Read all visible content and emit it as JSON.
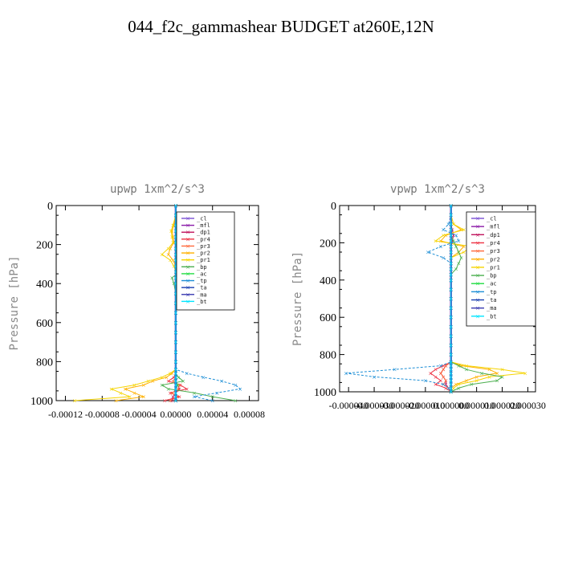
{
  "figure_title": "044_f2c_gammashear  BUDGET at260E,12N",
  "legend_names": [
    "_cl",
    "_mfl",
    "_dp1",
    "_pr4",
    "_pr3",
    "_pr2",
    "_pr1",
    "_bp",
    "_ac",
    "_tp",
    "_ta",
    "_ma",
    "_bt"
  ],
  "colors": {
    "_cl": "#7b4fd4",
    "_mfl": "#8b1aa8",
    "_dp1": "#c0145c",
    "_pr4": "#ee3344",
    "_pr3": "#ff6a3d",
    "_pr2": "#ffb000",
    "_pr1": "#f5d400",
    "_bp": "#4caf50",
    "_ac": "#22dd44",
    "_tp": "#1e8fd6",
    "_ta": "#1a3fb0",
    "_ma": "#3a3ab0",
    "_bt": "#00e5ff"
  },
  "chart_data": [
    {
      "type": "line",
      "title": "upwp  1xm^2/s^3",
      "xlabel": "",
      "ylabel": "Pressure [hPa]",
      "xlim": [
        -0.00013,
        9e-05
      ],
      "ylim": [
        1000,
        0
      ],
      "grid": false,
      "legend_position": "top-right",
      "yticks": [
        "0",
        "200",
        "400",
        "600",
        "800",
        "1000"
      ],
      "yticks_values": [
        0,
        200,
        400,
        600,
        800,
        1000
      ],
      "xticks": [
        "-0.00012",
        "-0.00008",
        "-0.00004",
        "0.00000",
        "0.00004",
        "0.00008"
      ],
      "xticks_values": [
        -0.00012,
        -8e-05,
        -4e-05,
        0.0,
        4e-05,
        8e-05
      ],
      "pressure": [
        0,
        50,
        100,
        130,
        160,
        190,
        220,
        250,
        280,
        310,
        340,
        370,
        400,
        450,
        500,
        550,
        600,
        650,
        700,
        750,
        800,
        840,
        860,
        880,
        900,
        920,
        940,
        960,
        980,
        1000
      ],
      "series": [
        {
          "name": "_cl",
          "values": [
            0,
            0,
            0,
            0,
            0,
            0,
            0,
            0,
            0,
            0,
            0,
            0,
            0,
            0,
            0,
            0,
            0,
            0,
            0,
            0,
            0,
            0,
            0,
            0,
            0,
            0,
            0,
            0,
            0,
            0
          ]
        },
        {
          "name": "_mfl",
          "values": [
            0,
            0,
            0,
            0,
            0,
            0,
            0,
            0,
            0,
            0,
            0,
            0,
            0,
            0,
            0,
            0,
            0,
            0,
            0,
            0,
            0,
            0,
            0,
            0,
            0,
            0,
            0,
            0,
            0,
            0
          ]
        },
        {
          "name": "_dp1",
          "values": [
            0,
            0,
            0,
            0,
            0,
            1e-06,
            0,
            0,
            0,
            0,
            0,
            0,
            0,
            0,
            0,
            0,
            0,
            0,
            0,
            0,
            0,
            0,
            0,
            0,
            0,
            2e-06,
            4e-06,
            0,
            -3e-06,
            -4e-06
          ]
        },
        {
          "name": "_pr4",
          "values": [
            0,
            0,
            0,
            0,
            0,
            0,
            0,
            0,
            0,
            0,
            0,
            0,
            0,
            0,
            0,
            0,
            0,
            0,
            0,
            0,
            0,
            0,
            0,
            -2e-06,
            -8e-06,
            5e-06,
            1.2e-05,
            -6e-06,
            4e-06,
            -1.2e-05
          ]
        },
        {
          "name": "_pr3",
          "values": [
            0,
            0,
            0,
            0,
            0,
            0,
            0,
            0,
            0,
            0,
            0,
            0,
            0,
            0,
            0,
            0,
            0,
            0,
            0,
            0,
            0,
            0,
            0,
            0,
            -3e-06,
            4e-06,
            3e-06,
            -4e-06,
            2e-06,
            -6e-06
          ]
        },
        {
          "name": "_pr2",
          "values": [
            0,
            0,
            -2e-06,
            -4e-06,
            -3e-06,
            -2e-06,
            -6e-06,
            -8e-06,
            -3e-06,
            0,
            0,
            0,
            0,
            0,
            0,
            0,
            0,
            0,
            0,
            0,
            0,
            0,
            -4e-06,
            -1e-05,
            -2.5e-05,
            -3.5e-05,
            -5.5e-05,
            -4.5e-05,
            -3.5e-05,
            -6.5e-05
          ]
        },
        {
          "name": "_pr1",
          "values": [
            0,
            0,
            -3e-06,
            -5e-06,
            -4e-06,
            -3e-06,
            -8e-06,
            -1.5e-05,
            -6e-06,
            -2e-06,
            0,
            0,
            0,
            0,
            0,
            0,
            0,
            0,
            0,
            0,
            0,
            0,
            -6e-06,
            -1.5e-05,
            -3e-05,
            -4.5e-05,
            -7e-05,
            -6e-05,
            -5e-05,
            -0.00011
          ]
        },
        {
          "name": "_bp",
          "values": [
            0,
            0,
            0,
            0,
            1e-06,
            2e-06,
            4e-06,
            8e-06,
            1.2e-05,
            6e-06,
            4e-06,
            -4e-06,
            -2e-06,
            0,
            0,
            0,
            0,
            0,
            0,
            0,
            0,
            0,
            0,
            3e-06,
            8e-06,
            -1.5e-05,
            -8e-06,
            2e-05,
            4e-05,
            6.5e-05
          ]
        },
        {
          "name": "_ac",
          "values": [
            0,
            0,
            0,
            0,
            0,
            0,
            0,
            0,
            0,
            0,
            0,
            0,
            0,
            0,
            0,
            0,
            0,
            0,
            0,
            0,
            0,
            0,
            0,
            0,
            0,
            2e-06,
            0,
            0,
            0,
            0
          ]
        },
        {
          "name": "_tp",
          "values": [
            0,
            0,
            1e-06,
            3e-06,
            4e-06,
            5e-06,
            9e-06,
            1.4e-05,
            1e-05,
            5e-06,
            2e-06,
            0,
            0,
            0,
            0,
            0,
            0,
            0,
            0,
            0,
            0,
            0,
            1.2e-05,
            3e-05,
            5e-05,
            6.5e-05,
            7e-05,
            4.5e-05,
            2e-05,
            4e-05
          ]
        },
        {
          "name": "_ta",
          "values": [
            0,
            0,
            0,
            0,
            0,
            0,
            0,
            0,
            0,
            0,
            0,
            0,
            0,
            0,
            0,
            0,
            0,
            0,
            0,
            0,
            0,
            0,
            0,
            0,
            0,
            0,
            0,
            0,
            0,
            0
          ]
        },
        {
          "name": "_ma",
          "values": [
            0,
            0,
            0,
            0,
            0,
            0,
            0,
            0,
            0,
            0,
            0,
            0,
            0,
            0,
            0,
            0,
            0,
            0,
            0,
            0,
            0,
            0,
            0,
            0,
            0,
            0,
            0,
            0,
            0,
            0
          ]
        },
        {
          "name": "_bt",
          "values": [
            0,
            0,
            0,
            0,
            0,
            0,
            0,
            0,
            0,
            0,
            0,
            0,
            0,
            0,
            0,
            0,
            0,
            0,
            0,
            0,
            0,
            0,
            0,
            0,
            0,
            0,
            0,
            0,
            0,
            0
          ]
        }
      ]
    },
    {
      "type": "line",
      "title": "vpwp  1xm^2/s^3",
      "xlabel": "",
      "ylabel": "Pressure [hPa]",
      "xlim": [
        -4.35e-05,
        3.3e-05
      ],
      "ylim": [
        1000,
        0
      ],
      "grid": false,
      "legend_position": "top-right",
      "yticks": [
        "0",
        "200",
        "400",
        "600",
        "800",
        "1000"
      ],
      "yticks_values": [
        0,
        200,
        400,
        600,
        800,
        1000
      ],
      "xticks": [
        "-0.000040",
        "-0.000030",
        "-0.000020",
        "-0.000010",
        "0.000000",
        "0.000010",
        "0.000020",
        "0.000030"
      ],
      "xticks_values": [
        -4e-05,
        -3e-05,
        -2e-05,
        -1e-05,
        0.0,
        1e-05,
        2e-05,
        3e-05
      ],
      "pressure": [
        0,
        50,
        100,
        130,
        160,
        190,
        220,
        250,
        280,
        310,
        340,
        370,
        400,
        450,
        500,
        550,
        600,
        650,
        700,
        750,
        800,
        840,
        860,
        880,
        900,
        920,
        940,
        960,
        980,
        1000
      ],
      "series": [
        {
          "name": "_cl",
          "values": [
            0,
            0,
            0,
            0,
            0,
            0,
            0,
            0,
            0,
            0,
            0,
            0,
            0,
            0,
            0,
            0,
            0,
            0,
            0,
            0,
            0,
            0,
            0,
            0,
            0,
            0,
            0,
            0,
            0,
            0
          ]
        },
        {
          "name": "_mfl",
          "values": [
            0,
            0,
            0,
            0,
            0,
            0,
            0,
            0,
            0,
            0,
            0,
            0,
            0,
            0,
            0,
            0,
            0,
            0,
            0,
            0,
            0,
            0,
            0,
            0,
            0,
            0,
            0,
            0,
            0,
            0
          ]
        },
        {
          "name": "_dp1",
          "values": [
            0,
            0,
            0,
            5e-07,
            1e-06,
            5e-07,
            0,
            0,
            0,
            0,
            0,
            0,
            0,
            0,
            0,
            0,
            0,
            0,
            0,
            0,
            0,
            0,
            -2e-06,
            -3e-06,
            -4e-06,
            -3e-06,
            -2e-06,
            -2e-06,
            -1e-06,
            0
          ]
        },
        {
          "name": "_pr4",
          "values": [
            0,
            0,
            0,
            0,
            0,
            0,
            0,
            0,
            0,
            0,
            0,
            0,
            0,
            0,
            0,
            0,
            0,
            0,
            0,
            0,
            0,
            0,
            -3e-06,
            -6e-06,
            -8e-06,
            -6e-06,
            -4e-06,
            -6e-06,
            -2e-06,
            0
          ]
        },
        {
          "name": "_pr3",
          "values": [
            0,
            0,
            0,
            0,
            0,
            0,
            0,
            0,
            0,
            0,
            0,
            0,
            0,
            0,
            0,
            0,
            0,
            0,
            0,
            0,
            0,
            0,
            -2e-06,
            -3e-06,
            -4e-06,
            -3e-06,
            -2e-06,
            -3e-06,
            -1e-06,
            0
          ]
        },
        {
          "name": "_pr2",
          "values": [
            0,
            0,
            1e-06,
            4e-06,
            -2e-06,
            -4e-06,
            5e-06,
            3e-06,
            0,
            0,
            0,
            0,
            0,
            0,
            0,
            0,
            0,
            0,
            0,
            0,
            0,
            0,
            4e-06,
            1.5e-05,
            1.8e-05,
            1e-05,
            6e-06,
            2e-06,
            0,
            0
          ]
        },
        {
          "name": "_pr1",
          "values": [
            0,
            0,
            1e-06,
            5e-06,
            -3e-06,
            -6e-06,
            8e-06,
            5e-06,
            0,
            0,
            0,
            0,
            0,
            0,
            0,
            0,
            0,
            0,
            0,
            0,
            0,
            0,
            6e-06,
            2e-05,
            2.9e-05,
            1.5e-05,
            1e-05,
            3e-06,
            1e-06,
            0
          ]
        },
        {
          "name": "_bp",
          "values": [
            0,
            0,
            0,
            0,
            0,
            1e-06,
            2e-06,
            3e-06,
            4e-06,
            3e-06,
            2e-06,
            0,
            0,
            0,
            0,
            0,
            0,
            0,
            0,
            0,
            0,
            0,
            3e-06,
            6e-06,
            1.2e-05,
            2e-05,
            1.8e-05,
            8e-06,
            3e-06,
            0
          ]
        },
        {
          "name": "_ac",
          "values": [
            0,
            0,
            0,
            0,
            0,
            0,
            0,
            0,
            0,
            0,
            0,
            0,
            0,
            0,
            0,
            0,
            0,
            0,
            0,
            0,
            0,
            0,
            0,
            0,
            0,
            0,
            0,
            0,
            0,
            0
          ]
        },
        {
          "name": "_tp",
          "values": [
            0,
            0,
            -1e-06,
            -3e-06,
            2e-06,
            3e-06,
            -4e-06,
            -9e-06,
            -3e-06,
            0,
            0,
            0,
            0,
            0,
            0,
            0,
            0,
            0,
            0,
            0,
            0,
            0,
            -4e-06,
            -2.2e-05,
            -4.1e-05,
            -3e-05,
            -1e-05,
            -3e-06,
            -1e-06,
            0
          ]
        },
        {
          "name": "_ta",
          "values": [
            0,
            0,
            0,
            0,
            0,
            0,
            0,
            0,
            0,
            0,
            0,
            0,
            0,
            0,
            0,
            0,
            0,
            0,
            0,
            0,
            0,
            0,
            0,
            0,
            0,
            0,
            0,
            0,
            0,
            0
          ]
        },
        {
          "name": "_ma",
          "values": [
            0,
            0,
            0,
            0,
            0,
            0,
            0,
            0,
            0,
            0,
            0,
            0,
            0,
            0,
            0,
            0,
            0,
            0,
            0,
            0,
            0,
            0,
            0,
            0,
            0,
            0,
            0,
            0,
            0,
            0
          ]
        },
        {
          "name": "_bt",
          "values": [
            0,
            0,
            0,
            0,
            0,
            0,
            0,
            0,
            0,
            0,
            0,
            0,
            0,
            0,
            0,
            0,
            0,
            0,
            0,
            0,
            0,
            0,
            0,
            0,
            0,
            0,
            0,
            0,
            0,
            0
          ]
        }
      ]
    }
  ]
}
